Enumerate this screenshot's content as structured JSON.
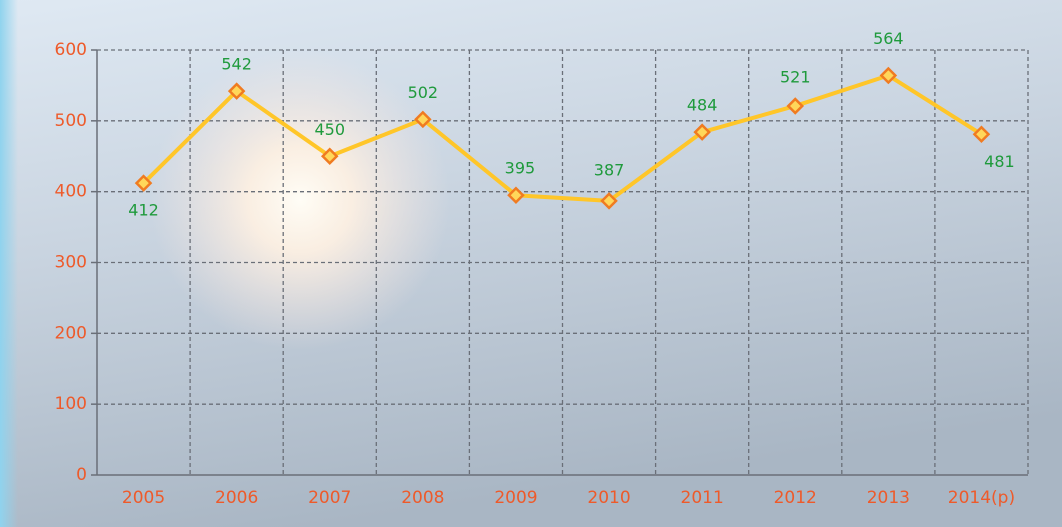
{
  "chart_data": {
    "type": "line",
    "categories": [
      "2005",
      "2006",
      "2007",
      "2008",
      "2009",
      "2010",
      "2011",
      "2012",
      "2013",
      "2014(p)"
    ],
    "series": [
      {
        "color": "#ffc629",
        "values": [
          412,
          542,
          450,
          502,
          395,
          387,
          484,
          521,
          564,
          481
        ]
      }
    ],
    "ylim": [
      0,
      600
    ],
    "yticks": [
      0,
      100,
      200,
      300,
      400,
      500,
      600
    ],
    "grid": true
  }
}
